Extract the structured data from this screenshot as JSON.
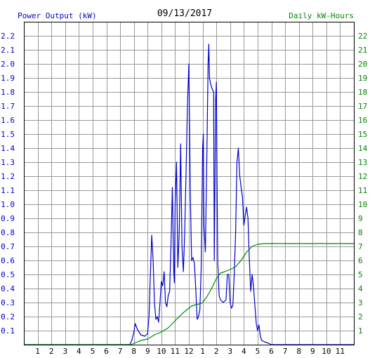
{
  "chart_data": {
    "type": "line",
    "title": "09/13/2017",
    "ylabel_left": "Power Output (kW)",
    "ylabel_right": "Daily kW-Hours",
    "x_tick_labels": [
      "1",
      "2",
      "3",
      "4",
      "5",
      "6",
      "7",
      "8",
      "9",
      "10",
      "11",
      "12",
      "1",
      "2",
      "3",
      "4",
      "5",
      "6",
      "7",
      "8",
      "9",
      "10",
      "11"
    ],
    "x_range_hours": [
      0,
      24
    ],
    "y_left_range": [
      0,
      2.3
    ],
    "y_left_ticks": [
      "0.1",
      "0.2",
      "0.3",
      "0.4",
      "0.5",
      "0.6",
      "0.7",
      "0.8",
      "0.9",
      "1.0",
      "1.1",
      "1.2",
      "1.3",
      "1.4",
      "1.5",
      "1.6",
      "1.7",
      "1.8",
      "1.9",
      "2.0",
      "2.1",
      "2.2"
    ],
    "y_right_range": [
      0,
      23
    ],
    "y_right_ticks": [
      "1",
      "2",
      "3",
      "4",
      "5",
      "6",
      "7",
      "8",
      "9",
      "10",
      "11",
      "12",
      "13",
      "14",
      "15",
      "16",
      "17",
      "18",
      "19",
      "20",
      "21",
      "22"
    ],
    "grid": true,
    "colors": {
      "power": "#0000cc",
      "energy": "#008800",
      "left_axis_text": "#0000cc",
      "right_axis_text": "#008800",
      "grid": "#999999",
      "frame": "#000000"
    },
    "series": [
      {
        "name": "Power Output (kW)",
        "axis": "left",
        "points": [
          [
            0,
            0
          ],
          [
            7.7,
            0
          ],
          [
            7.85,
            0.03
          ],
          [
            8.0,
            0.09
          ],
          [
            8.1,
            0.15
          ],
          [
            8.25,
            0.11
          ],
          [
            8.5,
            0.07
          ],
          [
            8.8,
            0.06
          ],
          [
            9.0,
            0.08
          ],
          [
            9.1,
            0.2
          ],
          [
            9.2,
            0.5
          ],
          [
            9.3,
            0.78
          ],
          [
            9.4,
            0.6
          ],
          [
            9.5,
            0.3
          ],
          [
            9.6,
            0.18
          ],
          [
            9.7,
            0.2
          ],
          [
            9.8,
            0.16
          ],
          [
            9.9,
            0.3
          ],
          [
            10.0,
            0.45
          ],
          [
            10.1,
            0.42
          ],
          [
            10.2,
            0.52
          ],
          [
            10.3,
            0.3
          ],
          [
            10.4,
            0.27
          ],
          [
            10.5,
            0.35
          ],
          [
            10.6,
            0.38
          ],
          [
            10.7,
            0.7
          ],
          [
            10.8,
            1.12
          ],
          [
            10.9,
            0.52
          ],
          [
            10.95,
            0.44
          ],
          [
            11.0,
            1.0
          ],
          [
            11.1,
            1.3
          ],
          [
            11.2,
            0.55
          ],
          [
            11.3,
            0.8
          ],
          [
            11.4,
            1.43
          ],
          [
            11.5,
            0.7
          ],
          [
            11.6,
            0.52
          ],
          [
            11.7,
            0.8
          ],
          [
            11.8,
            1.25
          ],
          [
            11.9,
            1.7
          ],
          [
            12.0,
            2.0
          ],
          [
            12.1,
            1.1
          ],
          [
            12.2,
            0.6
          ],
          [
            12.3,
            0.62
          ],
          [
            12.4,
            0.58
          ],
          [
            12.5,
            0.4
          ],
          [
            12.6,
            0.18
          ],
          [
            12.7,
            0.2
          ],
          [
            12.8,
            0.25
          ],
          [
            12.9,
            0.55
          ],
          [
            13.0,
            1.4
          ],
          [
            13.05,
            1.5
          ],
          [
            13.1,
            0.85
          ],
          [
            13.2,
            0.66
          ],
          [
            13.3,
            1.3
          ],
          [
            13.4,
            2.0
          ],
          [
            13.45,
            2.14
          ],
          [
            13.5,
            1.9
          ],
          [
            13.6,
            1.85
          ],
          [
            13.7,
            1.82
          ],
          [
            13.8,
            1.8
          ],
          [
            13.85,
            0.6
          ],
          [
            13.95,
            1.75
          ],
          [
            14.0,
            1.87
          ],
          [
            14.05,
            1.2
          ],
          [
            14.1,
            0.6
          ],
          [
            14.2,
            0.35
          ],
          [
            14.3,
            0.32
          ],
          [
            14.5,
            0.3
          ],
          [
            14.7,
            0.32
          ],
          [
            14.8,
            0.5
          ],
          [
            14.9,
            0.5
          ],
          [
            15.0,
            0.3
          ],
          [
            15.1,
            0.26
          ],
          [
            15.2,
            0.28
          ],
          [
            15.3,
            0.5
          ],
          [
            15.4,
            0.8
          ],
          [
            15.5,
            1.3
          ],
          [
            15.6,
            1.4
          ],
          [
            15.7,
            1.2
          ],
          [
            15.8,
            1.12
          ],
          [
            15.9,
            1.05
          ],
          [
            16.0,
            0.85
          ],
          [
            16.1,
            0.92
          ],
          [
            16.2,
            0.98
          ],
          [
            16.3,
            0.9
          ],
          [
            16.4,
            0.6
          ],
          [
            16.5,
            0.38
          ],
          [
            16.6,
            0.5
          ],
          [
            16.7,
            0.42
          ],
          [
            16.8,
            0.28
          ],
          [
            16.9,
            0.15
          ],
          [
            17.0,
            0.1
          ],
          [
            17.1,
            0.14
          ],
          [
            17.2,
            0.06
          ],
          [
            17.3,
            0.03
          ],
          [
            17.5,
            0.02
          ],
          [
            17.8,
            0.01
          ],
          [
            18.0,
            0
          ],
          [
            24,
            0
          ]
        ]
      },
      {
        "name": "Daily kW-Hours",
        "axis": "right",
        "points": [
          [
            0,
            0
          ],
          [
            7.8,
            0
          ],
          [
            8.5,
            0.3
          ],
          [
            9.0,
            0.4
          ],
          [
            9.5,
            0.7
          ],
          [
            10.0,
            0.9
          ],
          [
            10.5,
            1.2
          ],
          [
            11.0,
            1.7
          ],
          [
            11.5,
            2.2
          ],
          [
            12.0,
            2.6
          ],
          [
            12.2,
            2.75
          ],
          [
            12.5,
            2.85
          ],
          [
            12.8,
            2.9
          ],
          [
            13.0,
            3.0
          ],
          [
            13.3,
            3.4
          ],
          [
            13.6,
            3.9
          ],
          [
            14.0,
            4.7
          ],
          [
            14.3,
            5.1
          ],
          [
            14.6,
            5.2
          ],
          [
            15.0,
            5.35
          ],
          [
            15.4,
            5.55
          ],
          [
            15.8,
            6.0
          ],
          [
            16.2,
            6.6
          ],
          [
            16.6,
            7.0
          ],
          [
            17.0,
            7.15
          ],
          [
            17.5,
            7.2
          ],
          [
            18.0,
            7.2
          ],
          [
            24,
            7.2
          ]
        ]
      }
    ]
  }
}
